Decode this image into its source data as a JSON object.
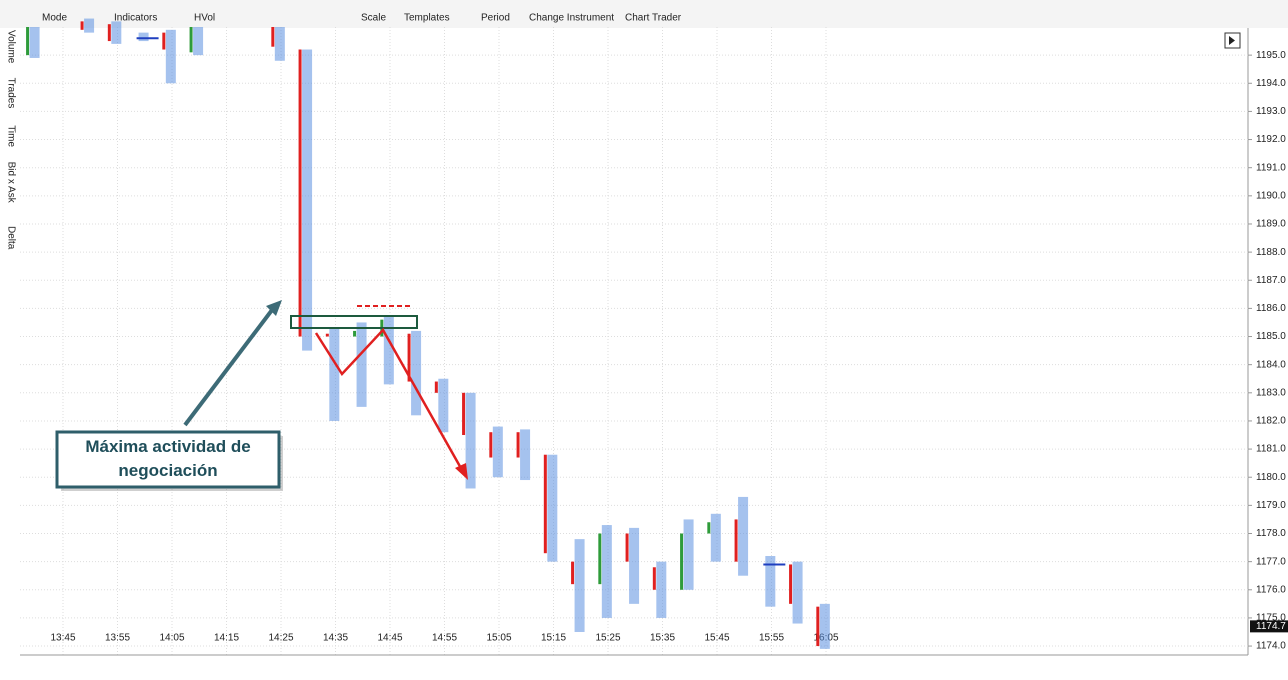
{
  "toolbar": {
    "items": [
      "Mode",
      "Indicators",
      "HVol",
      "Scale",
      "Templates",
      "Period",
      "Change Instrument",
      "Chart Trader"
    ]
  },
  "side_panel": {
    "items": [
      "Volume",
      "Trades",
      "Time",
      "Bid x Ask",
      "Delta"
    ]
  },
  "annotation": "Máxima actividad de negociación",
  "chart_data": {
    "type": "candlestick",
    "categories": [
      "13:45",
      "13:55",
      "14:05",
      "14:15",
      "14:25",
      "14:35",
      "14:45",
      "14:55",
      "15:05",
      "15:15",
      "15:25",
      "15:35",
      "15:45",
      "15:55",
      "16:05"
    ],
    "x": [
      "13:40",
      "13:50",
      "13:55",
      "14:00",
      "14:05",
      "14:10",
      "14:25",
      "14:30",
      "14:35",
      "14:40",
      "14:45",
      "14:50",
      "14:55",
      "15:00",
      "15:05",
      "15:10",
      "15:15",
      "15:20",
      "15:25",
      "15:30",
      "15:35",
      "15:40",
      "15:45",
      "15:50",
      "15:55",
      "16:00",
      "16:05"
    ],
    "open": [
      1195.0,
      1196.2,
      1196.1,
      1195.6,
      1195.8,
      1195.1,
      1196.0,
      1195.2,
      1185.1,
      1185.0,
      1185.0,
      1185.1,
      1183.4,
      1183.0,
      1181.6,
      1181.6,
      1180.8,
      1177.0,
      1176.2,
      1178.0,
      1176.8,
      1176.0,
      1178.0,
      1178.5,
      1176.9,
      1176.9,
      1175.4
    ],
    "high": [
      1196.0,
      1196.3,
      1196.2,
      1195.8,
      1195.9,
      1196.0,
      1196.0,
      1195.2,
      1185.3,
      1185.5,
      1185.7,
      1185.2,
      1183.5,
      1183.0,
      1181.8,
      1181.7,
      1180.8,
      1177.8,
      1178.3,
      1178.2,
      1177.0,
      1178.5,
      1178.7,
      1179.3,
      1177.2,
      1177.0,
      1175.5
    ],
    "low": [
      1194.9,
      1195.8,
      1195.4,
      1195.5,
      1194.0,
      1195.0,
      1194.8,
      1184.5,
      1182.0,
      1182.5,
      1183.3,
      1182.2,
      1181.6,
      1179.6,
      1180.0,
      1179.9,
      1177.0,
      1174.5,
      1175.0,
      1175.5,
      1175.0,
      1176.0,
      1177.0,
      1176.5,
      1175.4,
      1174.8,
      1173.9
    ],
    "close": [
      1196.0,
      1195.9,
      1195.5,
      1195.6,
      1195.2,
      1196.0,
      1195.3,
      1185.0,
      1185.0,
      1185.2,
      1185.6,
      1183.4,
      1183.0,
      1181.5,
      1180.7,
      1180.7,
      1177.3,
      1176.2,
      1178.0,
      1177.0,
      1176.0,
      1178.0,
      1178.4,
      1177.0,
      1176.9,
      1175.5,
      1174.0
    ],
    "ylim": [
      1173.7,
      1196.0
    ],
    "yticks": [
      {
        "value": 1174,
        "label": "1174.0"
      },
      {
        "value": 1175,
        "label": "1175.0"
      },
      {
        "value": 1176,
        "label": "1176.0"
      },
      {
        "value": 1177,
        "label": "1177.0"
      },
      {
        "value": 1178,
        "label": "1178.0"
      },
      {
        "value": 1179,
        "label": "1179.0"
      },
      {
        "value": 1180,
        "label": "1180.0"
      },
      {
        "value": 1181,
        "label": "1181.0"
      },
      {
        "value": 1182,
        "label": "1182.0"
      },
      {
        "value": 1183,
        "label": "1183.0"
      },
      {
        "value": 1184,
        "label": "1184.0"
      },
      {
        "value": 1185,
        "label": "1185.0"
      },
      {
        "value": 1186,
        "label": "1186.0"
      },
      {
        "value": 1187,
        "label": "1187.0"
      },
      {
        "value": 1188,
        "label": "1188.0"
      },
      {
        "value": 1189,
        "label": "1189.0"
      },
      {
        "value": 1190,
        "label": "1190.0"
      },
      {
        "value": 1191,
        "label": "1191.0"
      },
      {
        "value": 1192,
        "label": "1192.0"
      },
      {
        "value": 1193,
        "label": "1193.0"
      },
      {
        "value": 1194,
        "label": "1194.0"
      },
      {
        "value": 1195,
        "label": "1195.0"
      }
    ],
    "last_price": {
      "value": 1174.7,
      "label": "1174.7"
    },
    "up_color": "#2e9b3a",
    "down_color": "#e02020",
    "flat_color": "#1f3fbf",
    "profile_color": "#5b8fe0",
    "grid": true
  }
}
